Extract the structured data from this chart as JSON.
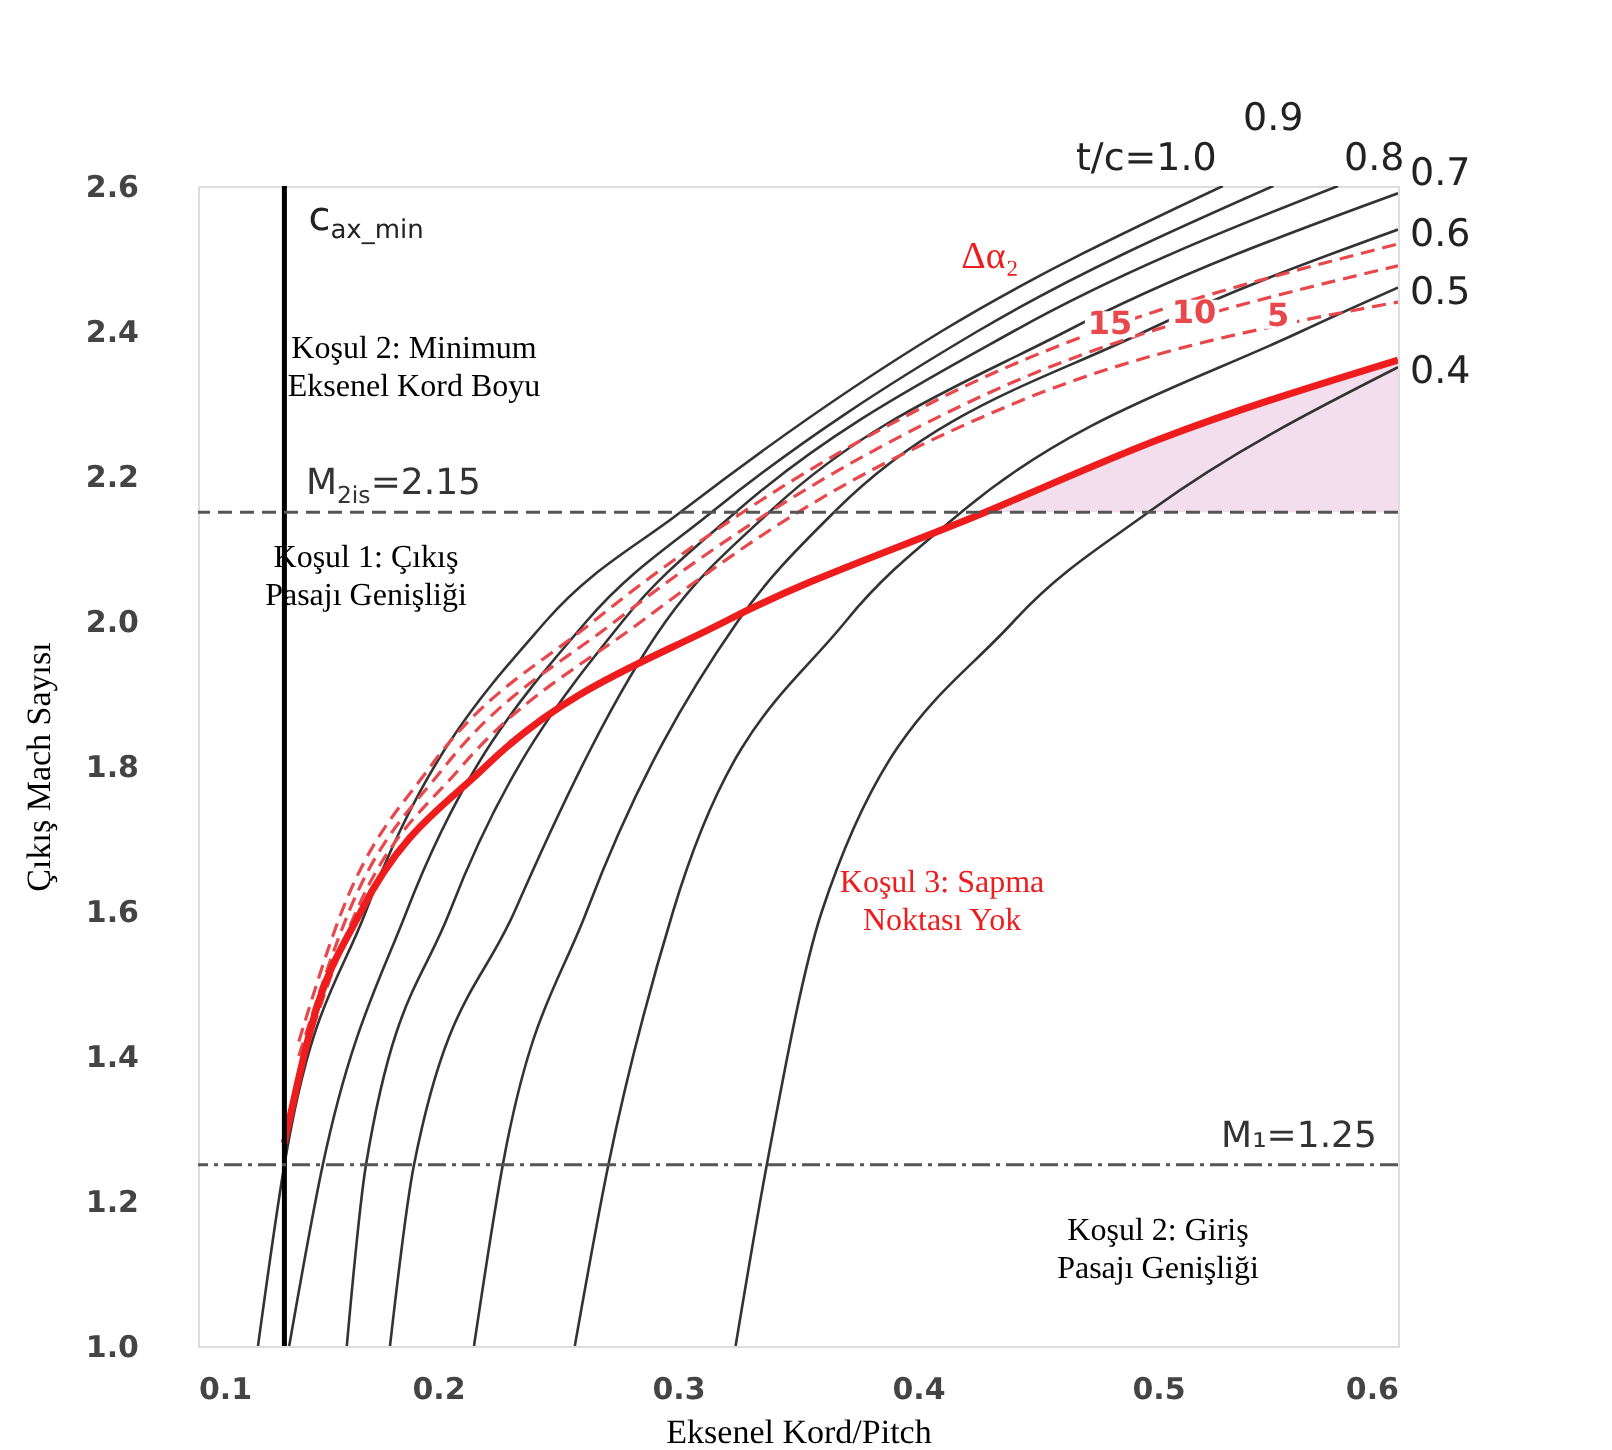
{
  "chart_data": {
    "type": "line",
    "xlabel": "Eksenel Kord/Pitch",
    "ylabel": "Çıkış Mach Sayısı",
    "xlim": [
      0.1,
      0.6
    ],
    "ylim": [
      1.0,
      2.6
    ],
    "xticks": [
      0.1,
      0.2,
      0.3,
      0.4,
      0.5,
      0.6
    ],
    "yticks": [
      {
        "value": 1,
        "label": "1.0"
      },
      1.2,
      1.4,
      1.6,
      1.8,
      {
        "value": 2,
        "label": "2.0"
      },
      2.2,
      2.4,
      2.6
    ],
    "grid": false,
    "series": [
      {
        "type": "area",
        "color": "#f0d8ea",
        "x": [
          0.428,
          0.5,
          0.55,
          0.6
        ],
        "values": [
          2.15,
          2.25,
          2.31,
          2.36
        ]
      },
      {
        "name": "t/c=1.0",
        "color": "#333333",
        "line_style": "solid",
        "x": [
          0.125,
          0.136,
          0.17,
          0.245,
          0.301,
          0.41,
          0.527
        ],
        "values": [
          1.0,
          1.25,
          1.6,
          2.0,
          2.15,
          2.4,
          2.6
        ]
      },
      {
        "name": "0.9",
        "color": "#333333",
        "line_style": "solid",
        "x": [
          0.138,
          0.152,
          0.187,
          0.262,
          0.314,
          0.425,
          0.548
        ],
        "values": [
          1.0,
          1.25,
          1.6,
          2.0,
          2.15,
          2.4,
          2.6
        ]
      },
      {
        "name": "0.8",
        "color": "#333333",
        "line_style": "solid",
        "x": [
          0.162,
          0.17,
          0.205,
          0.277,
          0.324,
          0.44,
          0.575
        ],
        "values": [
          1.0,
          1.25,
          1.6,
          2.0,
          2.15,
          2.4,
          2.6
        ]
      },
      {
        "name": "0.7",
        "color": "#333333",
        "line_style": "solid",
        "x": [
          0.18,
          0.19,
          0.232,
          0.295,
          0.338,
          0.462,
          0.6
        ],
        "values": [
          1.0,
          1.25,
          1.6,
          2.0,
          2.15,
          2.4,
          2.59
        ]
      },
      {
        "name": "0.6",
        "color": "#333333",
        "line_style": "solid",
        "x": [
          0.215,
          0.227,
          0.262,
          0.325,
          0.365,
          0.495,
          0.6
        ],
        "values": [
          1.0,
          1.25,
          1.6,
          2.0,
          2.15,
          2.4,
          2.54
        ]
      },
      {
        "name": "0.5",
        "color": "#333333",
        "line_style": "solid",
        "x": [
          0.257,
          0.271,
          0.298,
          0.37,
          0.418,
          0.56,
          0.6
        ],
        "values": [
          1.0,
          1.25,
          1.6,
          2.0,
          2.15,
          2.4,
          2.46
        ]
      },
      {
        "name": "0.4",
        "color": "#333333",
        "line_style": "solid",
        "x": [
          0.324,
          0.337,
          0.36,
          0.44,
          0.496,
          0.6
        ],
        "values": [
          1.0,
          1.25,
          1.6,
          2.0,
          2.15,
          2.35
        ]
      },
      {
        "name": "15",
        "color": "#e8474b",
        "line_style": "dashed",
        "x": [
          0.142,
          0.16,
          0.197,
          0.265,
          0.327,
          0.405,
          0.6
        ],
        "values": [
          1.42,
          1.6,
          1.8,
          2.0,
          2.15,
          2.3,
          2.52
        ]
      },
      {
        "name": "10",
        "color": "#e8474b",
        "line_style": "dashed",
        "x": [
          0.142,
          0.163,
          0.203,
          0.274,
          0.338,
          0.42,
          0.6
        ],
        "values": [
          1.4,
          1.6,
          1.8,
          2.0,
          2.15,
          2.3,
          2.49
        ]
      },
      {
        "name": "5",
        "color": "#e8474b",
        "line_style": "dashed",
        "x": [
          0.142,
          0.166,
          0.21,
          0.285,
          0.35,
          0.44,
          0.6
        ],
        "values": [
          1.38,
          1.6,
          1.8,
          2.0,
          2.15,
          2.3,
          2.44
        ]
      },
      {
        "color": "#ee1c1c",
        "line_style": "solid",
        "x": [
          0.136,
          0.148,
          0.168,
          0.22,
          0.32,
          0.428,
          0.5,
          0.6
        ],
        "values": [
          1.28,
          1.45,
          1.6,
          1.8,
          2.0,
          2.15,
          2.25,
          2.36
        ]
      }
    ],
    "ref_lines": [
      {
        "axis": "x",
        "value": 0.136,
        "label": "c$_{ax_min}$",
        "color": "#000000",
        "line_style": "solid"
      },
      {
        "axis": "y",
        "value": 2.15,
        "label": "M$_{2is}$=2.15",
        "color": "#555555",
        "line_style": "dashed"
      },
      {
        "axis": "y",
        "value": 1.25,
        "label": "M₁=1.25",
        "color": "#555555",
        "line_style": "dashdot"
      }
    ],
    "annotations": [
      "Koşul 2: Minimum\nEksenel Kord Boyu",
      "Koşul 1: Çıkış\nPasajı Genişliği",
      "Koşul 3: Sapma\nNoktası Yok",
      "Koşul 2: Giriş\nPasajı Genişliği",
      "Δα₂"
    ]
  }
}
